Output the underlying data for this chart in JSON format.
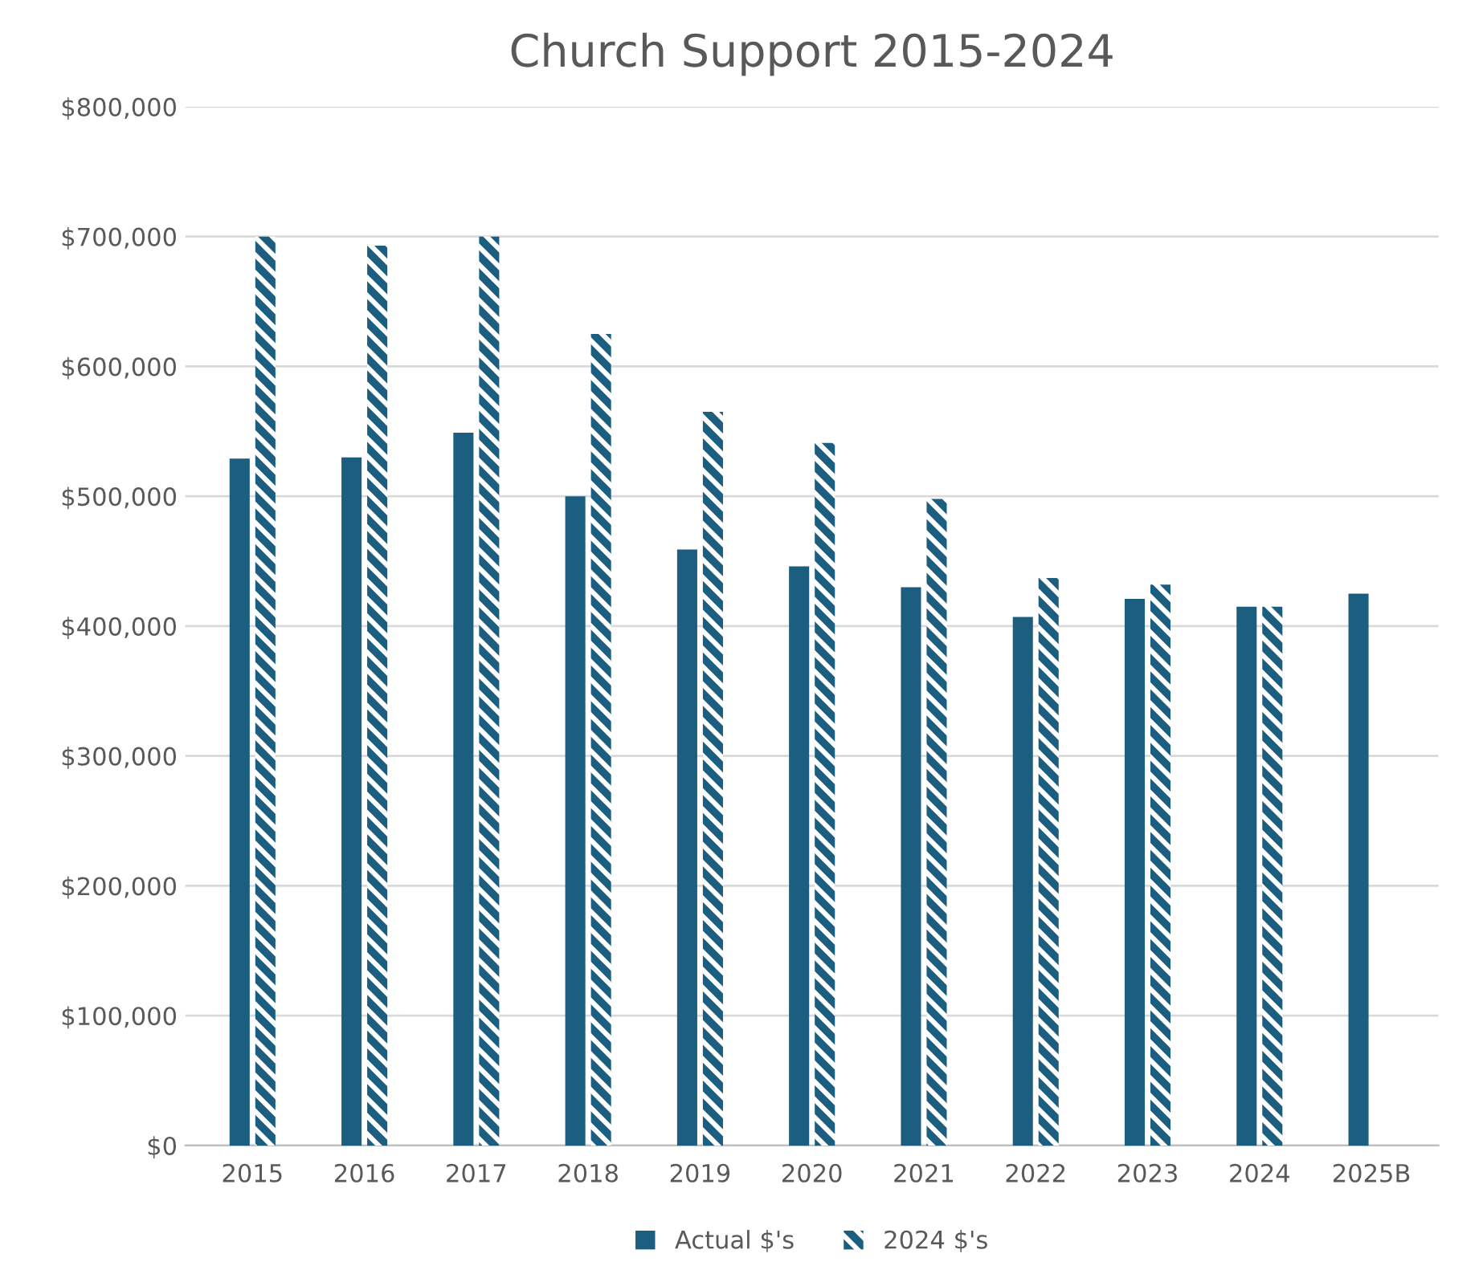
{
  "chart_data": {
    "type": "bar",
    "title": "Church Support 2015-2024",
    "categories": [
      "2015",
      "2016",
      "2017",
      "2018",
      "2019",
      "2020",
      "2021",
      "2022",
      "2023",
      "2024",
      "2025B"
    ],
    "series": [
      {
        "name": "Actual $'s",
        "color": "#1b5e7f",
        "values": [
          529000,
          530000,
          549000,
          500000,
          459000,
          446000,
          430000,
          407000,
          421000,
          415000,
          425000
        ]
      },
      {
        "name": "2024 $'s",
        "color": "#1b5e7f",
        "values": [
          700000,
          693000,
          700000,
          625000,
          565000,
          541000,
          498000,
          437000,
          432000,
          415000,
          null
        ]
      }
    ],
    "ylim": [
      0,
      800000
    ],
    "yticks": [
      {
        "value": 0,
        "label": "$0"
      },
      {
        "value": 100000,
        "label": "$100,000"
      },
      {
        "value": 200000,
        "label": "$200,000"
      },
      {
        "value": 300000,
        "label": "$300,000"
      },
      {
        "value": 400000,
        "label": "$400,000"
      },
      {
        "value": 500000,
        "label": "$500,000"
      },
      {
        "value": 600000,
        "label": "$600,000"
      },
      {
        "value": 700000,
        "label": "$700,000"
      },
      {
        "value": 800000,
        "label": "$800,000"
      }
    ],
    "grid": "y",
    "legend": "bottom"
  }
}
